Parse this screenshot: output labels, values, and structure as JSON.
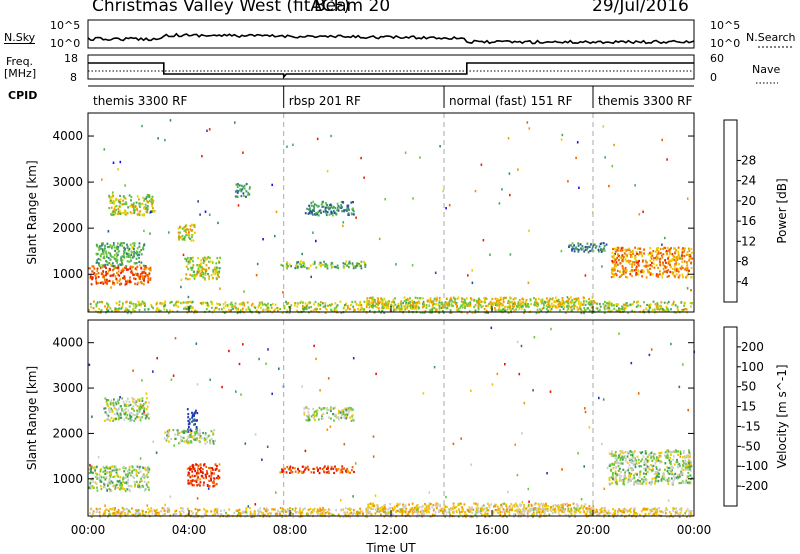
{
  "header": {
    "title": "Christmas Valley West (fitACF)",
    "beam": "Beam 20",
    "date": "29/Jul/2016"
  },
  "strip_labels": {
    "nsky": "N.Sky",
    "nsky_ticks": [
      "10^5",
      "10^0"
    ],
    "nsearch": "N.Search",
    "nsearch_ticks": [
      "10^5",
      "10^0"
    ],
    "freq_line1": "Freq.",
    "freq_line2": "[MHz]",
    "freq_ticks": [
      "18",
      "8"
    ],
    "nave": "Nave",
    "nave_ticks": [
      "60",
      "0"
    ],
    "cpid": "CPID"
  },
  "cpid_modes": [
    {
      "label": "themis 3300 RF",
      "start_h": 0.0,
      "end_h": 7.75
    },
    {
      "label": "rbsp 201 RF",
      "start_h": 7.75,
      "end_h": 14.1
    },
    {
      "label": "normal (fast) 151 RF",
      "start_h": 14.1,
      "end_h": 20.0
    },
    {
      "label": "themis 3300 RF",
      "start_h": 20.0,
      "end_h": 24.0
    }
  ],
  "chart_data": [
    {
      "type": "heatmap",
      "title": "",
      "xlabel": "Time UT",
      "ylabel": "Slant Range [km]",
      "xlim": [
        0,
        24
      ],
      "ylim": [
        180,
        4500
      ],
      "x_ticks": [
        "00:00",
        "04:00",
        "08:00",
        "12:00",
        "16:00",
        "20:00",
        "00:00"
      ],
      "y_ticks": [
        1000,
        2000,
        3000,
        4000
      ],
      "colorbar": {
        "label": "Power [dB]",
        "ticks": [
          "4",
          "8",
          "12",
          "16",
          "20",
          "24",
          "28"
        ],
        "colors": [
          "#1010ee",
          "#2a4aa0",
          "#3a8080",
          "#48a858",
          "#6cc838",
          "#e8d000",
          "#f09800",
          "#f06000",
          "#e82000"
        ]
      },
      "regions": [
        {
          "t0": 0.0,
          "t1": 23.9,
          "r0": 180,
          "r1": 430,
          "v": 0.55
        },
        {
          "t0": 0.0,
          "t1": 2.5,
          "r0": 800,
          "r1": 1200,
          "v": 0.85
        },
        {
          "t0": 0.3,
          "t1": 2.2,
          "r0": 1200,
          "r1": 1700,
          "v": 0.4
        },
        {
          "t0": 0.8,
          "t1": 2.6,
          "r0": 2300,
          "r1": 2750,
          "v": 0.55
        },
        {
          "t0": 3.5,
          "t1": 4.2,
          "r0": 1750,
          "r1": 2100,
          "v": 0.6
        },
        {
          "t0": 3.8,
          "t1": 5.2,
          "r0": 900,
          "r1": 1400,
          "v": 0.55
        },
        {
          "t0": 5.8,
          "t1": 6.4,
          "r0": 2700,
          "r1": 3000,
          "v": 0.35
        },
        {
          "t0": 8.5,
          "t1": 10.5,
          "r0": 2300,
          "r1": 2600,
          "v": 0.3
        },
        {
          "t0": 7.5,
          "t1": 11.0,
          "r0": 1150,
          "r1": 1300,
          "v": 0.45
        },
        {
          "t0": 11.0,
          "t1": 20.0,
          "r0": 300,
          "r1": 520,
          "v": 0.6
        },
        {
          "t0": 19.0,
          "t1": 20.5,
          "r0": 1500,
          "r1": 1700,
          "v": 0.3
        },
        {
          "t0": 20.7,
          "t1": 23.9,
          "r0": 950,
          "r1": 1600,
          "v": 0.75
        }
      ]
    },
    {
      "type": "heatmap",
      "title": "",
      "xlabel": "Time UT",
      "ylabel": "Slant Range [km]",
      "xlim": [
        0,
        24
      ],
      "ylim": [
        180,
        4500
      ],
      "x_ticks": [
        "00:00",
        "04:00",
        "08:00",
        "12:00",
        "16:00",
        "20:00",
        "00:00"
      ],
      "y_ticks": [
        1000,
        2000,
        3000,
        4000
      ],
      "colorbar": {
        "label": "Velocity [m s^-1]",
        "ticks": [
          "200",
          "100",
          "50",
          "15",
          "-15",
          "-50",
          "-100",
          "-200"
        ],
        "colors": [
          "#2030c0",
          "#2f6e8a",
          "#3d9a5a",
          "#6cc838",
          "#cccccc",
          "#f0c800",
          "#f09800",
          "#f06000",
          "#e81000"
        ]
      },
      "regions": [
        {
          "t0": 0.0,
          "t1": 23.9,
          "r0": 180,
          "r1": 380,
          "v": 0.6
        },
        {
          "t0": 0.0,
          "t1": 2.4,
          "r0": 750,
          "r1": 1300,
          "v": 0.44
        },
        {
          "t0": 0.6,
          "t1": 2.4,
          "r0": 2300,
          "r1": 2800,
          "v": 0.44
        },
        {
          "t0": 3.9,
          "t1": 4.3,
          "r0": 2050,
          "r1": 2600,
          "v": 0.03
        },
        {
          "t0": 3.9,
          "t1": 5.2,
          "r0": 850,
          "r1": 1350,
          "v": 0.93
        },
        {
          "t0": 3.0,
          "t1": 5.0,
          "r0": 1800,
          "r1": 2100,
          "v": 0.44
        },
        {
          "t0": 7.5,
          "t1": 10.5,
          "r0": 1150,
          "r1": 1300,
          "v": 0.9
        },
        {
          "t0": 8.5,
          "t1": 10.5,
          "r0": 2300,
          "r1": 2600,
          "v": 0.44
        },
        {
          "t0": 11.0,
          "t1": 20.0,
          "r0": 280,
          "r1": 480,
          "v": 0.6
        },
        {
          "t0": 20.6,
          "t1": 23.9,
          "r0": 900,
          "r1": 1650,
          "v": 0.44
        }
      ]
    }
  ]
}
